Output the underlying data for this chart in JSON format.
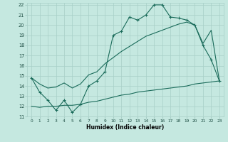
{
  "xlabel": "Humidex (Indice chaleur)",
  "xlim": [
    -0.5,
    23.5
  ],
  "ylim": [
    11,
    22.2
  ],
  "xticks": [
    0,
    1,
    2,
    3,
    4,
    5,
    6,
    7,
    8,
    9,
    10,
    11,
    12,
    13,
    14,
    15,
    16,
    17,
    18,
    19,
    20,
    21,
    22,
    23
  ],
  "yticks": [
    11,
    12,
    13,
    14,
    15,
    16,
    17,
    18,
    19,
    20,
    21,
    22
  ],
  "background_color": "#c5e8e0",
  "grid_color": "#a8cfc7",
  "line_color": "#1a6b5a",
  "line1_x": [
    0,
    1,
    2,
    3,
    4,
    5,
    6,
    7,
    8,
    9,
    10,
    11,
    12,
    13,
    14,
    15,
    16,
    17,
    18,
    19,
    20,
    21,
    22,
    23
  ],
  "line1_y": [
    14.8,
    13.4,
    12.6,
    11.6,
    12.6,
    11.4,
    12.2,
    14.0,
    14.5,
    15.4,
    19.0,
    19.4,
    20.8,
    20.5,
    21.0,
    22.0,
    22.0,
    20.8,
    20.7,
    20.5,
    20.0,
    18.0,
    16.6,
    14.5
  ],
  "line2_x": [
    0,
    1,
    2,
    3,
    4,
    5,
    6,
    7,
    8,
    9,
    10,
    11,
    12,
    13,
    14,
    15,
    16,
    17,
    18,
    19,
    20,
    21,
    22,
    23
  ],
  "line2_y": [
    14.8,
    14.2,
    13.8,
    13.9,
    14.3,
    13.8,
    14.2,
    15.1,
    15.4,
    16.2,
    16.8,
    17.4,
    17.9,
    18.4,
    18.9,
    19.2,
    19.5,
    19.8,
    20.1,
    20.3,
    20.0,
    18.2,
    19.5,
    14.5
  ],
  "line3_x": [
    0,
    1,
    2,
    3,
    4,
    5,
    6,
    7,
    8,
    9,
    10,
    11,
    12,
    13,
    14,
    15,
    16,
    17,
    18,
    19,
    20,
    21,
    22,
    23
  ],
  "line3_y": [
    12.0,
    11.9,
    12.0,
    12.0,
    12.1,
    12.1,
    12.2,
    12.4,
    12.5,
    12.7,
    12.9,
    13.1,
    13.2,
    13.4,
    13.5,
    13.6,
    13.7,
    13.8,
    13.9,
    14.0,
    14.2,
    14.3,
    14.4,
    14.5
  ]
}
